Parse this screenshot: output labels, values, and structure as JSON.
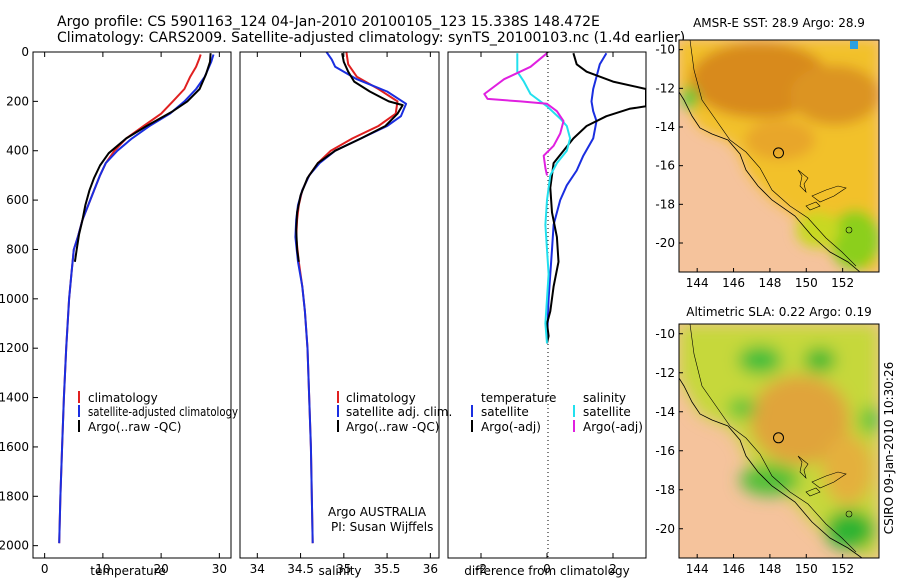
{
  "header": {
    "line1": "Argo profile: CS 5901163_124 04-Jan-2010 20100105_123 15.338S 148.472E",
    "line2": "Climatology: CARS2009. Satellite-adjusted climatology: synTS_20100103.nc (1.4d earlier)"
  },
  "credit": "CSIRO 09-Jan-2010 10:30:26",
  "colors": {
    "red": "#e02020",
    "blue": "#1a2ee0",
    "black": "#000000",
    "cyan": "#22e0ee",
    "magenta": "#e020e0",
    "land": "#f5c39c",
    "coast": "#000000"
  },
  "chart_data": [
    {
      "id": "temperature",
      "type": "line",
      "xlabel": "temperature",
      "ylabel": "",
      "xlim": [
        -2,
        32
      ],
      "ylim": [
        2050,
        0
      ],
      "xticks": [
        0,
        10,
        20,
        30
      ],
      "yticks": [
        0,
        200,
        400,
        600,
        800,
        1000,
        1200,
        1400,
        1600,
        1800,
        2000
      ],
      "legend": {
        "position": "lower-right",
        "items": [
          "climatology",
          "satellite-adjusted climatology",
          "Argo(..raw -QC)"
        ]
      },
      "series": [
        {
          "name": "climatology",
          "color": "red",
          "points": [
            [
              26.8,
              10
            ],
            [
              26.5,
              30
            ],
            [
              26,
              60
            ],
            [
              25,
              100
            ],
            [
              24,
              150
            ],
            [
              22,
              200
            ],
            [
              20,
              250
            ],
            [
              17,
              300
            ],
            [
              14,
              350
            ],
            [
              12,
              400
            ],
            [
              10.5,
              450
            ],
            [
              9.5,
              500
            ],
            [
              8.5,
              560
            ],
            [
              7.5,
              620
            ],
            [
              6.5,
              680
            ],
            [
              5.7,
              750
            ],
            [
              5,
              800
            ],
            [
              4.6,
              900
            ],
            [
              4.2,
              1000
            ],
            [
              3.7,
              1200
            ],
            [
              3.3,
              1400
            ],
            [
              3,
              1600
            ],
            [
              2.7,
              1800
            ],
            [
              2.5,
              1990
            ]
          ]
        },
        {
          "name": "satellite-adjusted climatology",
          "color": "blue",
          "points": [
            [
              29,
              10
            ],
            [
              28.6,
              40
            ],
            [
              27.5,
              100
            ],
            [
              26,
              150
            ],
            [
              24,
              200
            ],
            [
              21.5,
              250
            ],
            [
              18,
              300
            ],
            [
              15,
              350
            ],
            [
              12.5,
              400
            ],
            [
              10.5,
              450
            ],
            [
              9.5,
              500
            ],
            [
              8.5,
              560
            ],
            [
              7.5,
              620
            ],
            [
              6.5,
              680
            ],
            [
              5.7,
              750
            ],
            [
              5,
              800
            ],
            [
              4.6,
              900
            ],
            [
              4.2,
              1000
            ],
            [
              3.7,
              1200
            ],
            [
              3.3,
              1400
            ],
            [
              3,
              1600
            ],
            [
              2.7,
              1800
            ],
            [
              2.5,
              1990
            ]
          ]
        },
        {
          "name": "Argo(..raw -QC)",
          "color": "black",
          "points": [
            [
              28.5,
              5
            ],
            [
              28.4,
              40
            ],
            [
              27.7,
              90
            ],
            [
              26.6,
              150
            ],
            [
              24.5,
              200
            ],
            [
              22,
              240
            ],
            [
              17.5,
              300
            ],
            [
              14,
              350
            ],
            [
              11,
              410
            ],
            [
              9.5,
              460
            ],
            [
              8.5,
              510
            ],
            [
              7.7,
              560
            ],
            [
              7,
              620
            ],
            [
              6.5,
              680
            ],
            [
              5.9,
              740
            ],
            [
              5.5,
              800
            ],
            [
              5.2,
              850
            ]
          ]
        }
      ]
    },
    {
      "id": "salinity",
      "type": "line",
      "xlabel": "salinity",
      "xlim": [
        33.8,
        36.1
      ],
      "ylim": [
        2050,
        0
      ],
      "xticks": [
        34,
        34.5,
        35,
        35.5,
        36
      ],
      "legend": {
        "position": "lower-right",
        "items": [
          "climatology",
          "satellite adj. clim.",
          "Argo(..raw -QC)"
        ]
      },
      "annotation": [
        "Argo AUSTRALIA",
        "PI: Susan Wijffels"
      ],
      "series": [
        {
          "name": "climatology",
          "color": "red",
          "points": [
            [
              35.03,
              0
            ],
            [
              35.05,
              50
            ],
            [
              35.15,
              100
            ],
            [
              35.4,
              150
            ],
            [
              35.62,
              200
            ],
            [
              35.6,
              250
            ],
            [
              35.4,
              300
            ],
            [
              35.1,
              350
            ],
            [
              34.85,
              400
            ],
            [
              34.7,
              450
            ],
            [
              34.6,
              500
            ],
            [
              34.52,
              560
            ],
            [
              34.48,
              620
            ],
            [
              34.46,
              680
            ],
            [
              34.45,
              750
            ],
            [
              34.48,
              850
            ],
            [
              34.52,
              950
            ],
            [
              34.55,
              1050
            ],
            [
              34.58,
              1200
            ],
            [
              34.6,
              1400
            ],
            [
              34.62,
              1600
            ],
            [
              34.63,
              1800
            ],
            [
              34.64,
              1990
            ]
          ]
        },
        {
          "name": "satellite adj. clim.",
          "color": "blue",
          "points": [
            [
              34.8,
              0
            ],
            [
              34.86,
              30
            ],
            [
              34.9,
              60
            ],
            [
              35.15,
              110
            ],
            [
              35.5,
              160
            ],
            [
              35.72,
              210
            ],
            [
              35.66,
              260
            ],
            [
              35.5,
              300
            ],
            [
              35.2,
              350
            ],
            [
              34.9,
              400
            ],
            [
              34.72,
              450
            ],
            [
              34.6,
              500
            ],
            [
              34.52,
              560
            ],
            [
              34.47,
              620
            ],
            [
              34.45,
              680
            ],
            [
              34.44,
              750
            ],
            [
              34.47,
              850
            ],
            [
              34.52,
              950
            ],
            [
              34.55,
              1050
            ],
            [
              34.58,
              1200
            ],
            [
              34.6,
              1400
            ],
            [
              34.62,
              1600
            ],
            [
              34.63,
              1800
            ],
            [
              34.64,
              1990
            ]
          ]
        },
        {
          "name": "Argo(..raw -QC)",
          "color": "black",
          "points": [
            [
              34.98,
              5
            ],
            [
              35.0,
              40
            ],
            [
              35.05,
              80
            ],
            [
              35.12,
              120
            ],
            [
              35.3,
              160
            ],
            [
              35.52,
              200
            ],
            [
              35.68,
              215
            ],
            [
              35.62,
              250
            ],
            [
              35.48,
              300
            ],
            [
              35.2,
              350
            ],
            [
              34.9,
              400
            ],
            [
              34.7,
              450
            ],
            [
              34.58,
              510
            ],
            [
              34.5,
              580
            ],
            [
              34.46,
              650
            ],
            [
              34.45,
              720
            ],
            [
              34.46,
              800
            ],
            [
              34.48,
              850
            ]
          ]
        }
      ]
    },
    {
      "id": "difference",
      "type": "line",
      "xlabel": "difference from climatology",
      "xlim": [
        -3,
        3
      ],
      "ylim": [
        2050,
        0
      ],
      "xticks": [
        -2,
        0,
        2
      ],
      "zero_line": true,
      "legend": {
        "position": "lower-right",
        "headers": [
          "temperature",
          "salinity"
        ],
        "items": [
          "satellite",
          "Argo(-adj)",
          "satellite",
          "Argo(-adj)"
        ]
      },
      "series": [
        {
          "name": "temperature satellite",
          "color": "blue",
          "points": [
            [
              1.8,
              5
            ],
            [
              1.6,
              50
            ],
            [
              1.5,
              100
            ],
            [
              1.4,
              150
            ],
            [
              1.35,
              200
            ],
            [
              1.4,
              240
            ],
            [
              1.5,
              280
            ],
            [
              1.4,
              350
            ],
            [
              1.1,
              420
            ],
            [
              0.9,
              480
            ],
            [
              0.6,
              540
            ],
            [
              0.4,
              600
            ],
            [
              0.2,
              700
            ],
            [
              0.15,
              800
            ],
            [
              0.1,
              900
            ],
            [
              0.05,
              1000
            ],
            [
              0.02,
              1100
            ],
            [
              0.0,
              1180
            ]
          ]
        },
        {
          "name": "temperature Argo(-adj)",
          "color": "black",
          "points": [
            [
              0.8,
              5
            ],
            [
              0.9,
              50
            ],
            [
              1.2,
              80
            ],
            [
              2.0,
              120
            ],
            [
              3.0,
              150
            ],
            [
              3.0,
              220
            ],
            [
              2.5,
              230
            ],
            [
              1.8,
              260
            ],
            [
              1.2,
              300
            ],
            [
              0.8,
              350
            ],
            [
              0.5,
              400
            ],
            [
              0.2,
              450
            ],
            [
              0.1,
              550
            ],
            [
              0.15,
              650
            ],
            [
              0.3,
              750
            ],
            [
              0.35,
              850
            ],
            [
              0.2,
              950
            ],
            [
              0.1,
              1050
            ],
            [
              0.0,
              1100
            ],
            [
              0.05,
              1150
            ],
            [
              0.0,
              1180
            ]
          ]
        },
        {
          "name": "salinity satellite",
          "color": "cyan",
          "points": [
            [
              -0.9,
              5
            ],
            [
              -0.9,
              80
            ],
            [
              -0.7,
              120
            ],
            [
              -0.5,
              170
            ],
            [
              0.0,
              220
            ],
            [
              0.4,
              270
            ],
            [
              0.6,
              300
            ],
            [
              0.7,
              350
            ],
            [
              0.6,
              400
            ],
            [
              0.3,
              450
            ],
            [
              0.1,
              500
            ],
            [
              0.0,
              600
            ],
            [
              -0.05,
              700
            ],
            [
              0.0,
              800
            ],
            [
              0.05,
              900
            ],
            [
              0.0,
              1000
            ],
            [
              -0.05,
              1100
            ],
            [
              0.0,
              1180
            ]
          ]
        },
        {
          "name": "salinity Argo(-adj)",
          "color": "magenta",
          "points": [
            [
              0.0,
              5
            ],
            [
              -0.5,
              60
            ],
            [
              -1.3,
              110
            ],
            [
              -1.9,
              170
            ],
            [
              -1.8,
              190
            ],
            [
              -0.8,
              200
            ],
            [
              0.0,
              210
            ],
            [
              0.3,
              240
            ],
            [
              0.5,
              280
            ],
            [
              0.4,
              330
            ],
            [
              0.2,
              380
            ],
            [
              -0.1,
              420
            ],
            [
              -0.05,
              470
            ],
            [
              0.0,
              500
            ]
          ]
        }
      ]
    },
    {
      "id": "sst-map",
      "type": "heatmap",
      "title": "AMSR-E SST: 28.9  Argo: 28.9",
      "xlim": [
        143,
        154
      ],
      "ylim": [
        -21.5,
        -9.5
      ],
      "xticks": [
        144,
        146,
        148,
        150,
        152
      ],
      "yticks": [
        -10,
        -12,
        -14,
        -16,
        -18,
        -20
      ],
      "marker": [
        148.472,
        -15.338
      ]
    },
    {
      "id": "sla-map",
      "type": "heatmap",
      "title": "Altimetric SLA: 0.22  Argo: 0.19",
      "xlim": [
        143,
        154
      ],
      "ylim": [
        -21.5,
        -9.5
      ],
      "xticks": [
        144,
        146,
        148,
        150,
        152
      ],
      "yticks": [
        -10,
        -12,
        -14,
        -16,
        -18,
        -20
      ],
      "marker": [
        148.472,
        -15.338
      ]
    }
  ]
}
